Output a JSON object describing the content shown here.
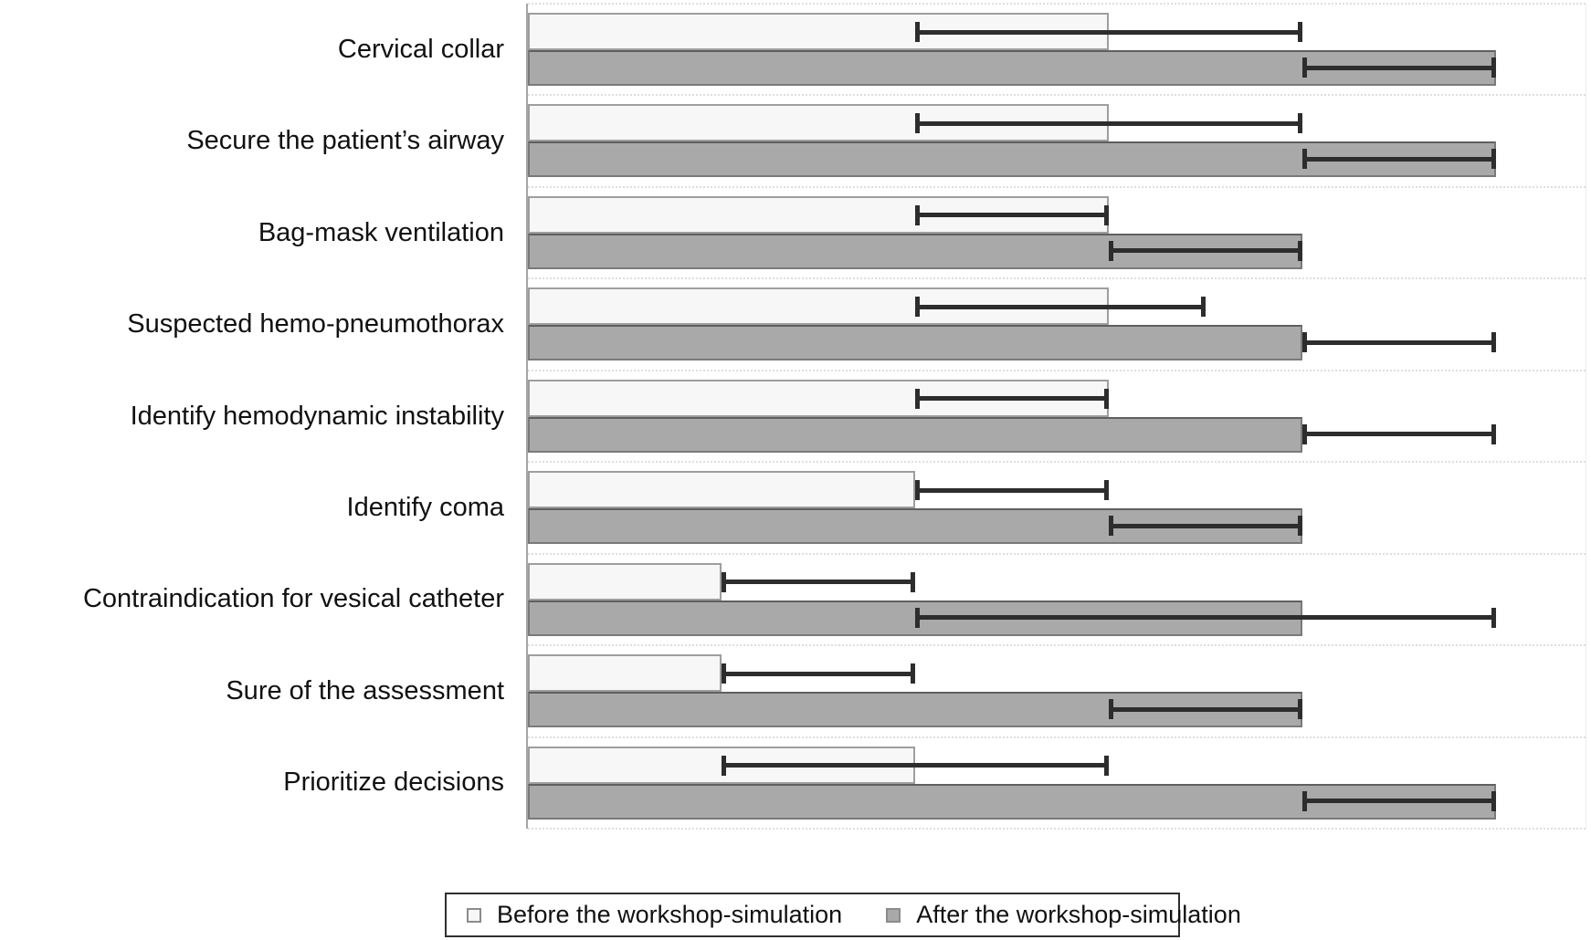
{
  "figure": {
    "title": "",
    "axis_numbers_visible": false
  },
  "colors": {
    "before_fill": "#f7f7f7",
    "before_border": "#9e9e9e",
    "after_fill": "#a9a9a9",
    "after_border": "#7a7a7a",
    "error_bar": "#2d2d2d",
    "gridline": "#dedede",
    "axis_line": "#a5a5a5",
    "legend_border": "#2f2f2f",
    "text": "#111111"
  },
  "legend": {
    "items": [
      {
        "key": "before",
        "label": "Before the workshop-simulation"
      },
      {
        "key": "after",
        "label": "After the workshop-simulation"
      }
    ]
  },
  "chart_data": {
    "type": "bar",
    "orientation": "horizontal",
    "title": "",
    "xlabel": "",
    "ylabel": "",
    "xlim": [
      0,
      5.47
    ],
    "grid": "dotted horizontal category separators",
    "legend_position": "bottom",
    "categories": [
      "Cervical collar",
      "Secure the patient’s airway",
      "Bag-mask ventilation",
      "Suspected hemo-pneumothorax",
      "Identify hemodynamic instability",
      "Identify coma",
      "Contraindication for vesical catheter",
      "Sure of the assessment",
      "Prioritize decisions"
    ],
    "series": [
      {
        "name": "Before the workshop-simulation",
        "values": [
          3,
          3,
          3,
          3,
          3,
          2,
          1,
          1,
          2
        ],
        "error_low": [
          2,
          2,
          2,
          2,
          2,
          2,
          1,
          1,
          1
        ],
        "error_high": [
          4,
          4,
          3,
          3.5,
          3,
          3,
          2,
          2,
          3
        ]
      },
      {
        "name": "After the workshop-simulation",
        "values": [
          5,
          5,
          4,
          4,
          4,
          4,
          4,
          4,
          5
        ],
        "error_low": [
          4,
          4,
          3,
          4,
          4,
          3,
          2,
          3,
          4
        ],
        "error_high": [
          5,
          5,
          4,
          5,
          5,
          4,
          5,
          4,
          5
        ]
      }
    ]
  }
}
